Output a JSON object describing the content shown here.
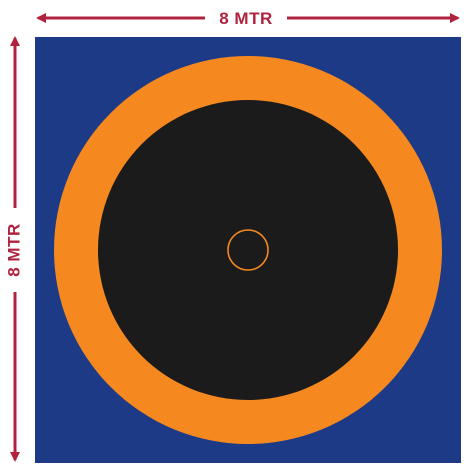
{
  "dimensions": {
    "width_label": "8 MTR",
    "height_label": "8 MTR"
  },
  "colors": {
    "background": "#ffffff",
    "square": "#1d3a86",
    "outer_ring": "#f5891f",
    "inner_disc": "#1b1b1b",
    "center_circle_stroke": "#f5891f",
    "dimension_lines": "#b0233f"
  }
}
